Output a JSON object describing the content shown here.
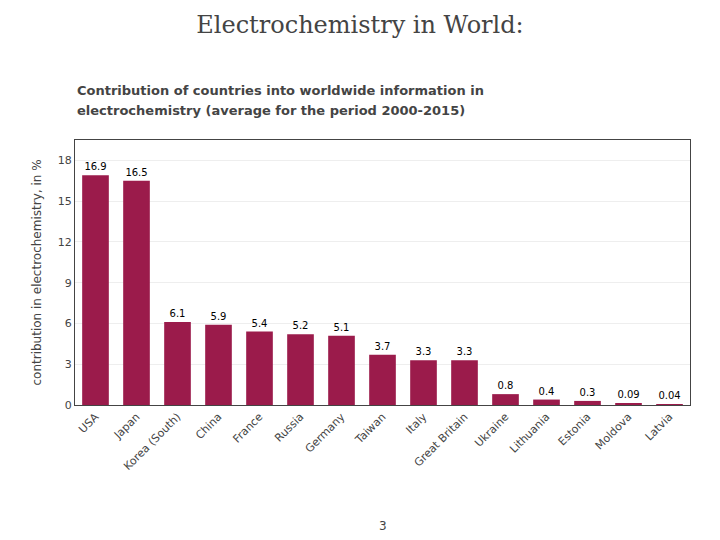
{
  "chart_data": {
    "type": "bar",
    "title": "Electrochemistry in World:",
    "subtitle": [
      "Contribution of countries into worldwide information in",
      "electrochemistry (average for the period 2000-2015)"
    ],
    "categories": [
      "USA",
      "Japan",
      "Korea (South)",
      "China",
      "France",
      "Russia",
      "Germany",
      "Taiwan",
      "Italy",
      "Great Britain",
      "Ukraine",
      "Lithuania",
      "Estonia",
      "Moldova",
      "Latvia"
    ],
    "values": [
      16.9,
      16.5,
      6.1,
      5.9,
      5.4,
      5.2,
      5.1,
      3.7,
      3.3,
      3.3,
      0.8,
      0.4,
      0.3,
      0.09,
      0.04
    ],
    "color": "#9B1B4B",
    "ylabel": "contribution in electrochemistry, in %",
    "ylim": [
      0,
      19.5
    ],
    "yticks": [
      0,
      3,
      6,
      9,
      12,
      15,
      18
    ],
    "grid": true,
    "data_labels": true,
    "annotations": [
      "3"
    ]
  }
}
